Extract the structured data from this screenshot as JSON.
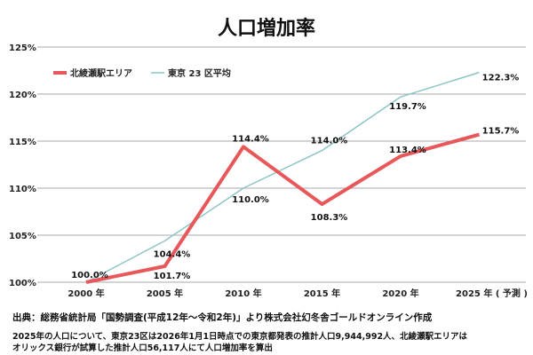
{
  "chart_data": {
    "type": "line",
    "title": "人口増加率",
    "categories": [
      "2000 年",
      "2005 年",
      "2010 年",
      "2015 年",
      "2020 年",
      "2025 年 ( 予測 )"
    ],
    "yticks": [
      "100%",
      "105%",
      "110%",
      "115%",
      "120%",
      "125%"
    ],
    "ylim": [
      100,
      125
    ],
    "grid": true,
    "legend": "top-left",
    "series": [
      {
        "name": "北綾瀬駅エリア",
        "color": "#e8585a",
        "values": [
          100.0,
          101.7,
          114.4,
          108.3,
          113.4,
          115.7
        ],
        "labels": [
          "100.0%",
          "101.7%",
          "114.4%",
          "108.3%",
          "113.4%",
          "115.7%"
        ]
      },
      {
        "name": "東京 23 区平均",
        "color": "#8cc5c6",
        "values": [
          100.0,
          104.4,
          110.0,
          114.0,
          119.7,
          122.3
        ],
        "labels": [
          "",
          "104.4%",
          "110.0%",
          "114.0%",
          "119.7%",
          "122.3%"
        ]
      }
    ]
  },
  "footer": {
    "source": "出典：総務省統計局「国勢調査(平成12年〜令和2年)」より株式会社幻冬舎ゴールドオンライン作成",
    "note1": "2025年の人口について、東京23区は2026年1月1日時点での東京都発表の推計人口9,944,992人、北綾瀬駅エリアは",
    "note2": "オリックス銀行が試算した推計人口56,117人にて人口増加率を算出"
  }
}
